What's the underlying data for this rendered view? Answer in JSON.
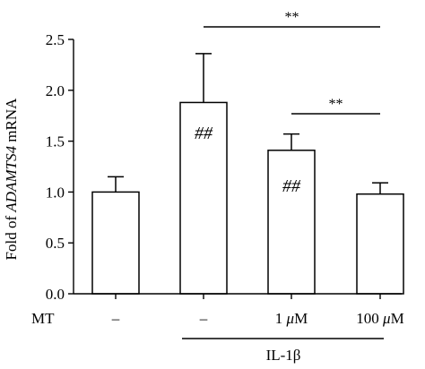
{
  "chart_data": {
    "type": "bar",
    "categories": [
      "–",
      "–",
      "1 μM",
      "100 μM"
    ],
    "series": [
      {
        "values": [
          1.0,
          1.88,
          1.41,
          0.98
        ],
        "errors": [
          0.15,
          0.48,
          0.16,
          0.11
        ]
      }
    ],
    "ylabel": {
      "prefix": "Fold of ",
      "gene": "ADAMTS4",
      "suffix": " mRNA"
    },
    "ylim": [
      0,
      2.5
    ],
    "yticks": [
      0.0,
      0.5,
      1.0,
      1.5,
      2.0,
      2.5
    ],
    "ytick_labels": [
      "0.0",
      "0.5",
      "1.0",
      "1.5",
      "2.0",
      "2.5"
    ],
    "row_label": "MT",
    "group_label": "IL-1β",
    "bar_annotations": [
      "",
      "##",
      "##",
      ""
    ],
    "significance": [
      {
        "from": 1,
        "to": 3,
        "label": "**"
      },
      {
        "from": 2,
        "to": 3,
        "label": "**"
      }
    ],
    "colors": {
      "bar_fill": "#ffffff",
      "stroke": "#000000"
    }
  }
}
